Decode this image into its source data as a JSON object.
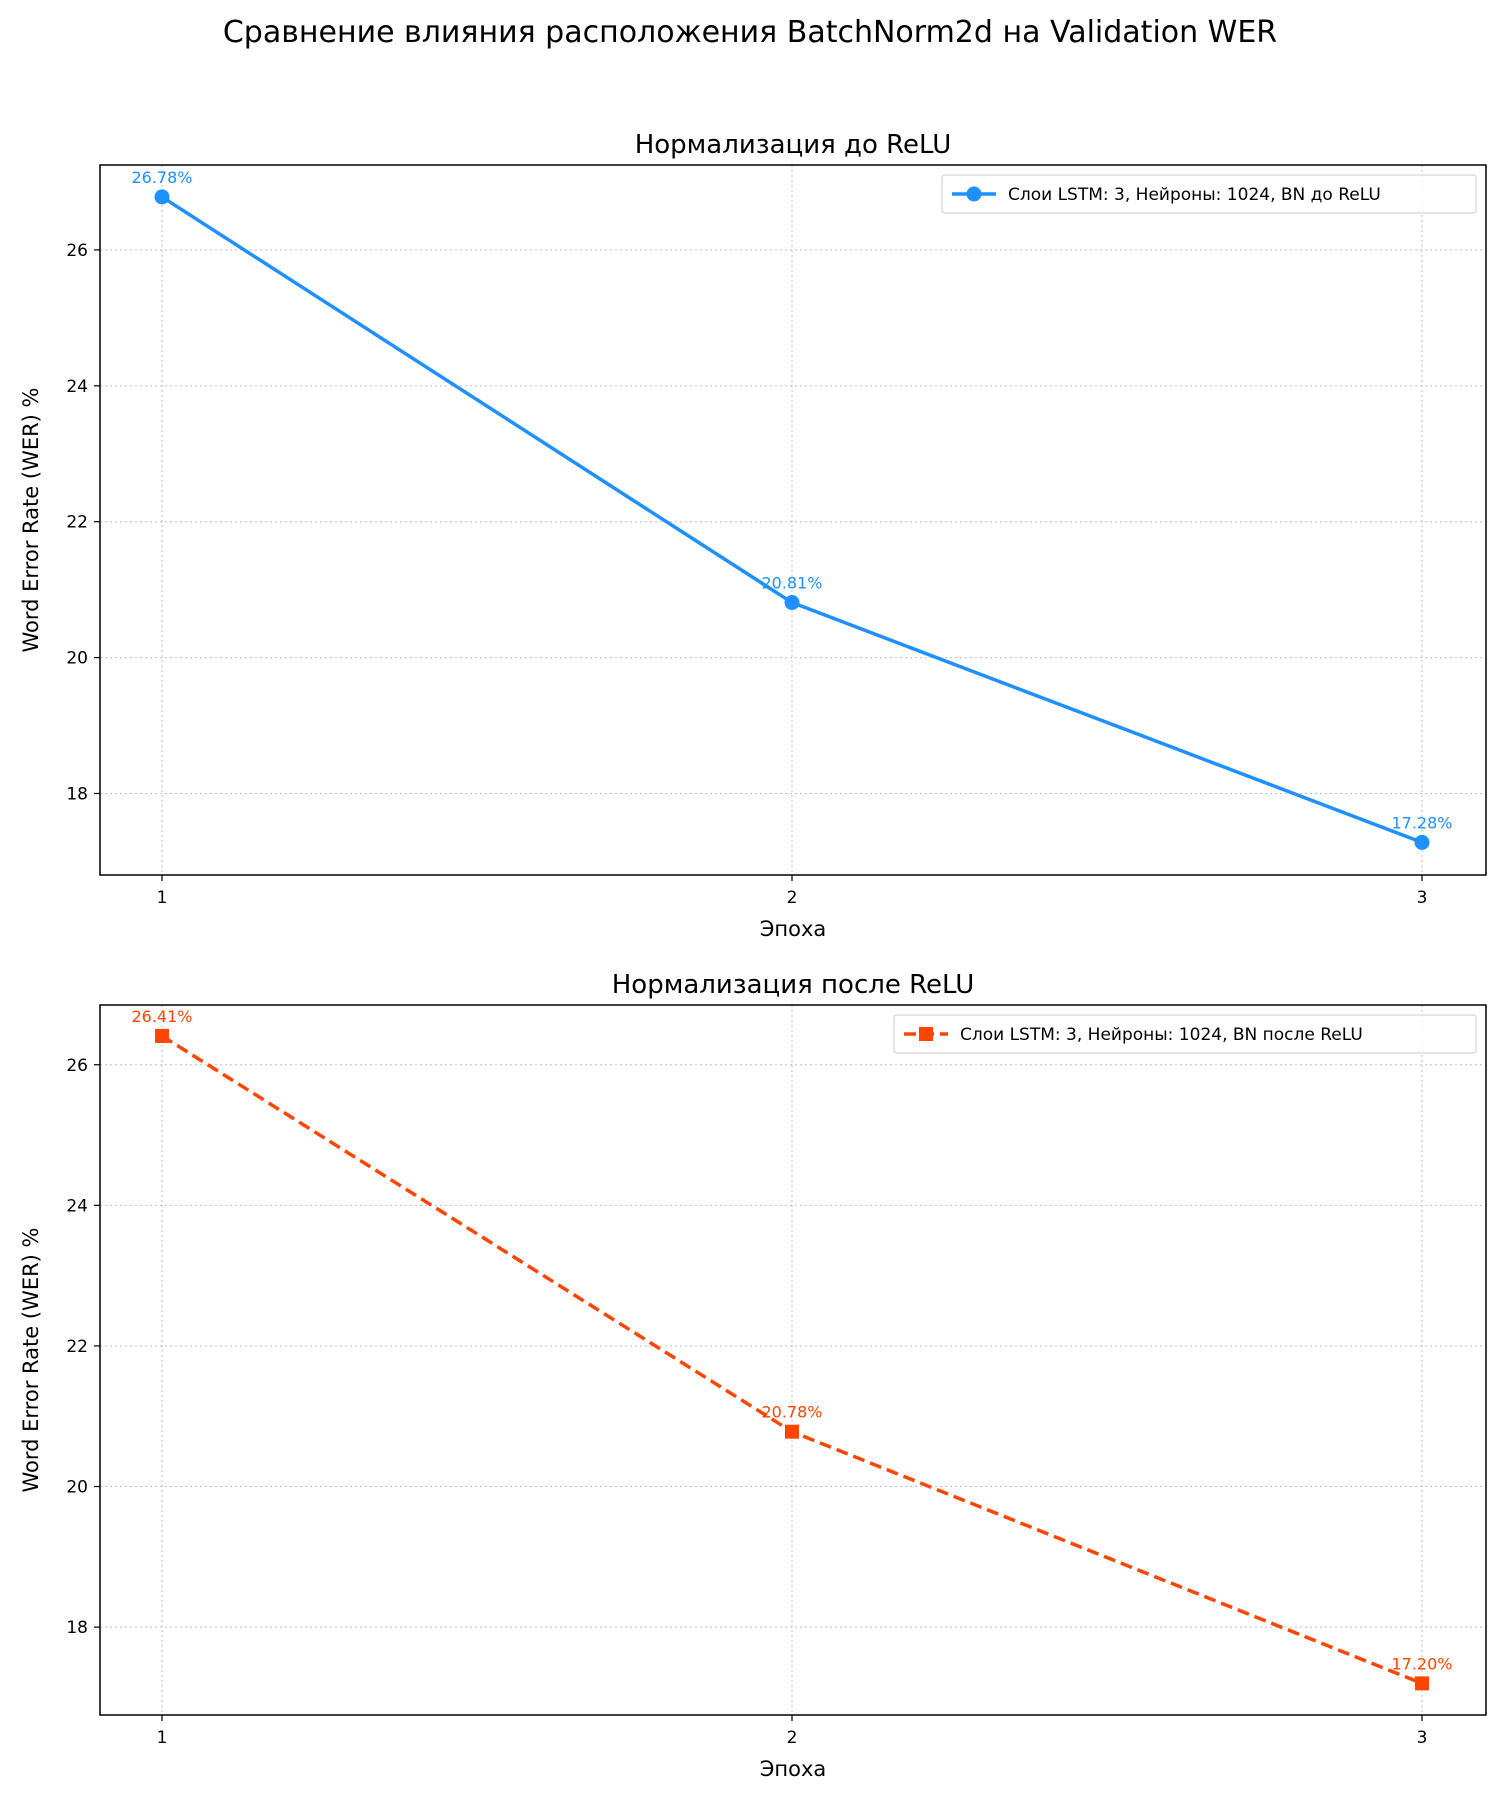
{
  "figure": {
    "suptitle": "Сравнение влияния расположения BatchNorm2d на Validation WER"
  },
  "chart_data": [
    {
      "type": "line",
      "title": "Нормализация до ReLU",
      "xlabel": "Эпоха",
      "ylabel": "Word Error Rate (WER) %",
      "x": [
        1,
        2,
        3
      ],
      "xticks": [
        "1",
        "2",
        "3"
      ],
      "yticks": [
        "18",
        "20",
        "22",
        "24",
        "26"
      ],
      "ylim": [
        16.8,
        27.25
      ],
      "grid": true,
      "legend_position": "top-right",
      "series": [
        {
          "name": "Слои LSTM: 3, Нейроны: 1024, BN до ReLU",
          "values": [
            26.78,
            20.81,
            17.28
          ],
          "point_labels": [
            "26.78%",
            "20.81%",
            "17.28%"
          ],
          "color": "#1e90ff",
          "line_style": "solid",
          "marker": "circle"
        }
      ]
    },
    {
      "type": "line",
      "title": "Нормализация после ReLU",
      "xlabel": "Эпоха",
      "ylabel": "Word Error Rate (WER) %",
      "x": [
        1,
        2,
        3
      ],
      "xticks": [
        "1",
        "2",
        "3"
      ],
      "yticks": [
        "18",
        "20",
        "22",
        "24",
        "26"
      ],
      "ylim": [
        16.75,
        26.85
      ],
      "grid": true,
      "legend_position": "top-right",
      "series": [
        {
          "name": "Слои LSTM: 3, Нейроны: 1024, BN после ReLU",
          "values": [
            26.41,
            20.78,
            17.2
          ],
          "point_labels": [
            "26.41%",
            "20.78%",
            "17.20%"
          ],
          "color": "#ff4500",
          "line_style": "dashed",
          "marker": "square"
        }
      ]
    }
  ]
}
